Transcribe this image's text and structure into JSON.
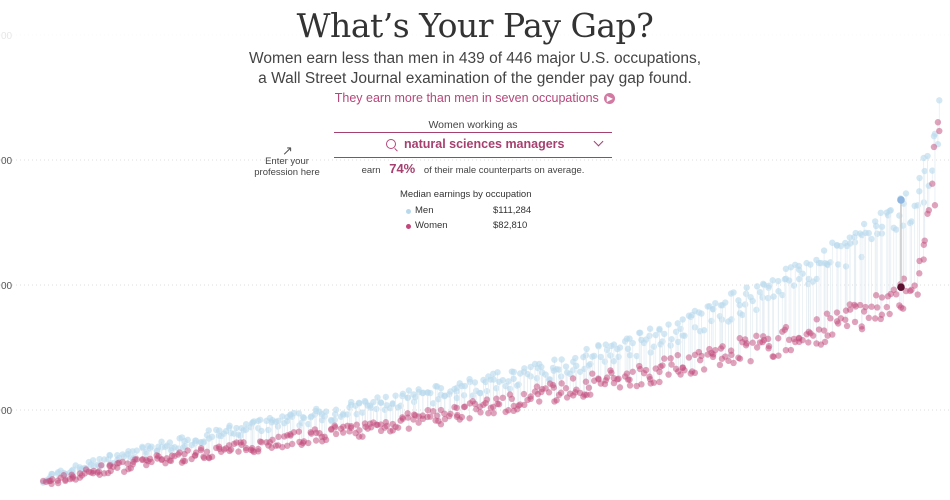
{
  "header": {
    "title": "What’s Your Pay Gap?",
    "subtitle_line1": "Women earn less than men in 439 of 446 major U.S. occupations,",
    "subtitle_line2": "a Wall Street Journal examination of the gender pay gap found.",
    "more_link": "They earn more than men in seven occupations"
  },
  "selector": {
    "label": "Women working as",
    "value": "natural sciences managers",
    "hint_line1": "Enter your",
    "hint_line2": "profession here",
    "earn_prefix": "earn",
    "percent": "74%",
    "earn_suffix": "of their male counterparts on average."
  },
  "legend": {
    "title": "Median earnings by occupation",
    "men_label": "Men",
    "men_value": "$111,284",
    "women_label": "Women",
    "women_value": "$82,810"
  },
  "colors": {
    "men": "#b8d9ec",
    "women": "#c2477a",
    "highlight_men": "#8fb6e0",
    "highlight_women": "#5a0f2e",
    "accent": "#a5406f"
  },
  "chart_data": {
    "type": "scatter",
    "x_axis": "occupations ranked by median earnings",
    "y_tick_labels": [
      "00",
      "00",
      "00",
      "00"
    ],
    "grid": true,
    "highlight": {
      "occupation": "natural sciences managers",
      "men": 111284,
      "women": 82810
    },
    "series": [
      {
        "name": "Men",
        "values": [
          [
            0,
            20300
          ],
          [
            6,
            21500
          ],
          [
            12,
            22500
          ],
          [
            18,
            24000
          ],
          [
            25,
            25200
          ],
          [
            32,
            26600
          ],
          [
            40,
            27800
          ],
          [
            48,
            29000
          ],
          [
            56,
            30300
          ],
          [
            64,
            31500
          ],
          [
            72,
            32600
          ],
          [
            80,
            33800
          ],
          [
            90,
            35200
          ],
          [
            100,
            36500
          ],
          [
            110,
            37800
          ],
          [
            120,
            39000
          ],
          [
            132,
            40500
          ],
          [
            145,
            42000
          ],
          [
            158,
            43500
          ],
          [
            170,
            45000
          ],
          [
            185,
            46700
          ],
          [
            200,
            48500
          ],
          [
            215,
            50500
          ],
          [
            230,
            52500
          ],
          [
            245,
            55000
          ],
          [
            260,
            57500
          ],
          [
            275,
            60500
          ],
          [
            290,
            63500
          ],
          [
            305,
            66000
          ],
          [
            320,
            70000
          ],
          [
            335,
            74500
          ],
          [
            350,
            79000
          ],
          [
            365,
            84500
          ],
          [
            380,
            88000
          ],
          [
            395,
            93000
          ],
          [
            405,
            98000
          ],
          [
            412,
            100500
          ],
          [
            420,
            103000
          ],
          [
            427,
            106500
          ],
          [
            432,
            112000
          ],
          [
            437,
            118000
          ],
          [
            441,
            124500
          ],
          [
            444,
            132000
          ],
          [
            446,
            142000
          ]
        ]
      },
      {
        "name": "Women",
        "values": [
          [
            0,
            18500
          ],
          [
            6,
            19800
          ],
          [
            12,
            20800
          ],
          [
            18,
            21700
          ],
          [
            25,
            22600
          ],
          [
            32,
            23500
          ],
          [
            40,
            24400
          ],
          [
            48,
            25400
          ],
          [
            56,
            26300
          ],
          [
            64,
            27000
          ],
          [
            72,
            27800
          ],
          [
            80,
            28800
          ],
          [
            90,
            29700
          ],
          [
            100,
            30700
          ],
          [
            110,
            31800
          ],
          [
            120,
            32900
          ],
          [
            132,
            34000
          ],
          [
            145,
            35200
          ],
          [
            158,
            36500
          ],
          [
            170,
            38000
          ],
          [
            185,
            39500
          ],
          [
            200,
            41000
          ],
          [
            215,
            43000
          ],
          [
            230,
            45000
          ],
          [
            245,
            47500
          ],
          [
            260,
            49500
          ],
          [
            275,
            51500
          ],
          [
            290,
            53500
          ],
          [
            305,
            55500
          ],
          [
            320,
            58000
          ],
          [
            335,
            60500
          ],
          [
            350,
            62500
          ],
          [
            365,
            64500
          ],
          [
            380,
            67500
          ],
          [
            395,
            71000
          ],
          [
            405,
            73500
          ],
          [
            412,
            76000
          ],
          [
            420,
            78000
          ],
          [
            427,
            80000
          ],
          [
            432,
            84000
          ],
          [
            437,
            96000
          ],
          [
            441,
            110000
          ],
          [
            444,
            132000
          ],
          [
            446,
            150000
          ]
        ]
      }
    ]
  }
}
